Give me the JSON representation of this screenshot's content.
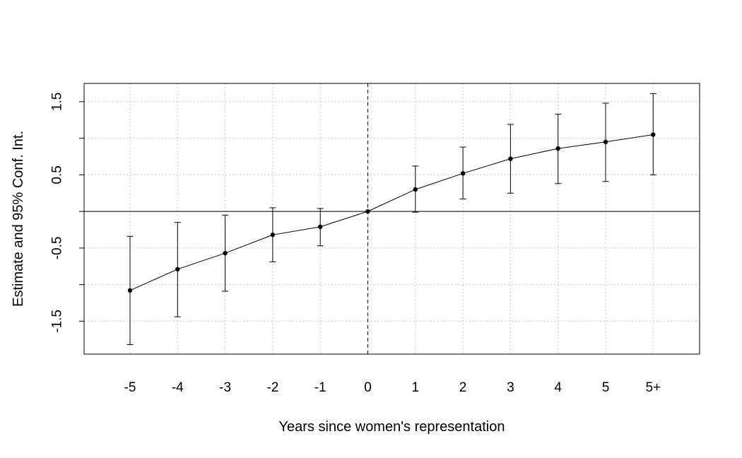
{
  "chart_data": {
    "type": "line",
    "title": "",
    "xlabel": "Years since women's representation",
    "ylabel": "Estimate and 95% Conf. Int.",
    "categories": [
      "-5",
      "-4",
      "-3",
      "-2",
      "-1",
      "0",
      "1",
      "2",
      "3",
      "4",
      "5",
      "5+"
    ],
    "estimate": [
      -1.08,
      -0.79,
      -0.57,
      -0.32,
      -0.21,
      0.0,
      0.3,
      0.52,
      0.72,
      0.86,
      0.95,
      1.05
    ],
    "ci_lower": [
      -1.82,
      -1.44,
      -1.09,
      -0.69,
      -0.47,
      0.0,
      -0.01,
      0.17,
      0.25,
      0.38,
      0.41,
      0.5
    ],
    "ci_upper": [
      -0.34,
      -0.15,
      -0.05,
      0.05,
      0.04,
      0.0,
      0.62,
      0.88,
      1.19,
      1.33,
      1.48,
      1.61
    ],
    "yticks": [
      1.5,
      1.0,
      0.5,
      0.0,
      -0.5,
      -1.0,
      -1.5
    ],
    "ytick_labels": [
      "1.5",
      "",
      "0.5",
      "",
      "-0.5",
      "",
      "-1.5"
    ],
    "ylim": [
      -1.95,
      1.75
    ],
    "reference_hline": 0,
    "reference_vline_category": "0",
    "grid": true
  }
}
